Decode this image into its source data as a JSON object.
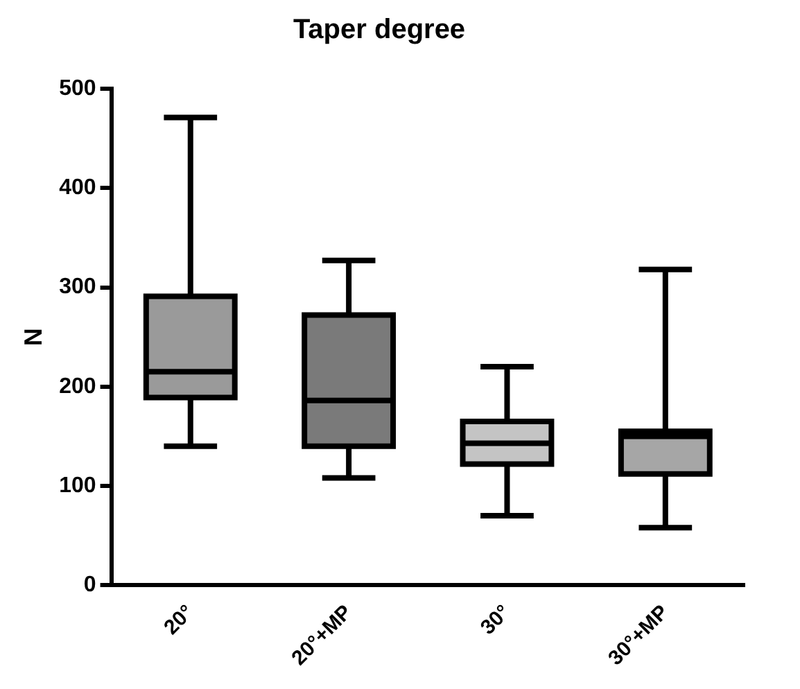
{
  "chart_data": {
    "type": "box",
    "title": "Taper degree",
    "ylabel": "N",
    "categories": [
      "20°",
      "20°+MP",
      "30°",
      "30°+MP"
    ],
    "boxes": [
      {
        "low": 140,
        "q1": 189,
        "median": 215,
        "q3": 291,
        "high": 471
      },
      {
        "low": 108,
        "q1": 140,
        "median": 186,
        "q3": 272,
        "high": 327
      },
      {
        "low": 70,
        "q1": 122,
        "median": 143,
        "q3": 165,
        "high": 220
      },
      {
        "low": 58,
        "q1": 112,
        "median": 150,
        "q3": 155,
        "high": 318
      }
    ],
    "colors": [
      "#9a9a9a",
      "#7a7a7a",
      "#c4c4c4",
      "#a6a6a6"
    ],
    "ylim": [
      0,
      500
    ],
    "yticks": [
      0,
      100,
      200,
      300,
      400,
      500
    ],
    "grid": false,
    "legend": false
  }
}
